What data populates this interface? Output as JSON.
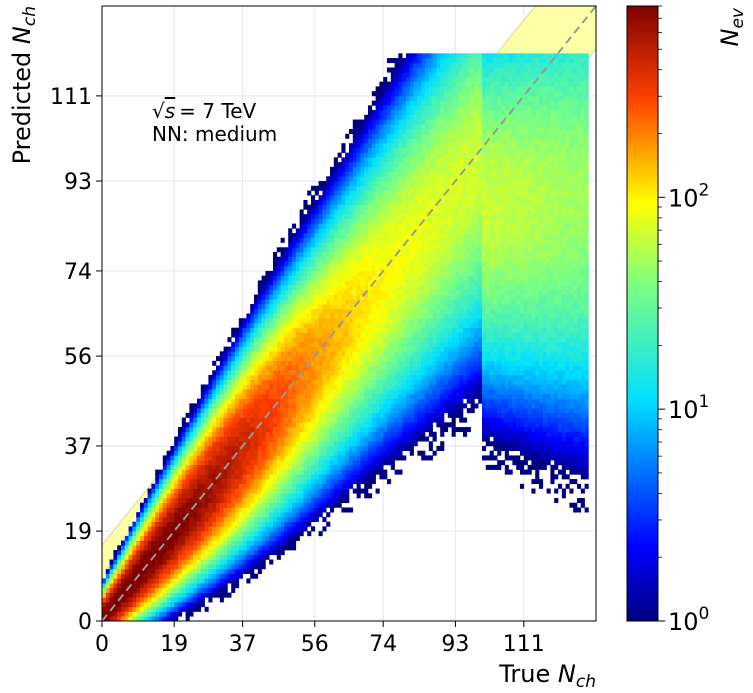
{
  "chart_data": {
    "type": "heatmap",
    "xlabel": "True",
    "xlabel_sym": "N",
    "xlabel_sub": "ch",
    "ylabel": "Predicted",
    "ylabel_sym": "N",
    "ylabel_sub": "ch",
    "xlim": [
      0,
      130
    ],
    "ylim": [
      0,
      130
    ],
    "x_ticks": [
      0,
      19,
      37,
      56,
      74,
      93,
      111
    ],
    "y_ticks": [
      0,
      19,
      37,
      56,
      74,
      93,
      111
    ],
    "x_tick_labels": [
      "0",
      "19",
      "37",
      "56",
      "74",
      "93",
      "111"
    ],
    "y_tick_labels": [
      "0",
      "19",
      "37",
      "56",
      "74",
      "93",
      "111"
    ],
    "grid": true,
    "annotation_energy": "= 7 TeV",
    "annotation_energy_sym": "s",
    "annotation_model": "NN: medium",
    "diagonal": {
      "from": [
        0,
        0
      ],
      "to": [
        130,
        130
      ],
      "style": "dashed",
      "color": "#999999"
    },
    "band": {
      "lower": "y = x - 9 (x ≥ 84)",
      "upper": "y = x + 16",
      "color": "#ffffa8"
    },
    "distribution": {
      "description": "2D histogram of predicted vs true charged multiplicity",
      "peak": {
        "x": 9,
        "y": 9,
        "count": 800
      },
      "ridge": "predicted ≈ true, saturating near 88 for true > 100",
      "x_range": [
        0,
        128
      ],
      "bin_width": 1
    },
    "colorbar": {
      "label": "N",
      "label_sub": "ev",
      "scale": "log",
      "range": [
        1,
        800
      ],
      "ticks": [
        1,
        10,
        100
      ],
      "tick_base": "10",
      "tick_exponents": [
        "0",
        "1",
        "2"
      ],
      "colormap": "jet"
    }
  }
}
